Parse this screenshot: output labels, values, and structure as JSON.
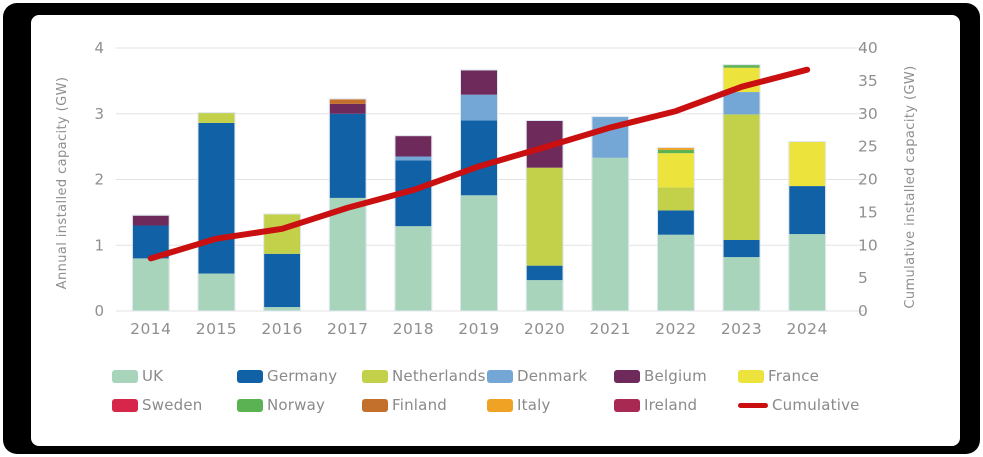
{
  "chart_data": {
    "type": "bar",
    "subtype": "stacked-bars-with-cumulative-line",
    "title": "",
    "categories": [
      "2014",
      "2015",
      "2016",
      "2017",
      "2018",
      "2019",
      "2020",
      "2021",
      "2022",
      "2023",
      "2024"
    ],
    "series": [
      {
        "name": "UK",
        "color": "#a9d4bc",
        "values": [
          0.8,
          0.57,
          0.06,
          1.72,
          1.29,
          1.76,
          0.47,
          2.33,
          1.16,
          0.82,
          1.17
        ]
      },
      {
        "name": "Germany",
        "color": "#1161a6",
        "values": [
          0.5,
          2.29,
          0.81,
          1.28,
          1.0,
          1.14,
          0.22,
          0,
          0.37,
          0.26,
          0.73
        ]
      },
      {
        "name": "Netherlands",
        "color": "#c3d04a",
        "values": [
          0,
          0.15,
          0.6,
          0,
          0,
          0,
          1.49,
          0,
          0.35,
          1.91,
          0
        ]
      },
      {
        "name": "Denmark",
        "color": "#74a7d6",
        "values": [
          0,
          0,
          0,
          0,
          0.06,
          0.39,
          0,
          0.62,
          0,
          0.34,
          0
        ]
      },
      {
        "name": "Belgium",
        "color": "#6d2a5b",
        "values": [
          0.15,
          0,
          0,
          0.15,
          0.31,
          0.37,
          0.71,
          0,
          0,
          0,
          0
        ]
      },
      {
        "name": "France",
        "color": "#ece33c",
        "values": [
          0,
          0,
          0,
          0,
          0,
          0,
          0,
          0,
          0.52,
          0.37,
          0.67
        ]
      },
      {
        "name": "Sweden",
        "color": "#d6264a",
        "values": [
          0,
          0,
          0,
          0,
          0,
          0,
          0,
          0,
          0,
          0,
          0
        ]
      },
      {
        "name": "Norway",
        "color": "#5bb253",
        "values": [
          0,
          0,
          0,
          0,
          0,
          0,
          0,
          0,
          0.05,
          0.04,
          0
        ]
      },
      {
        "name": "Finland",
        "color": "#c2702c",
        "values": [
          0,
          0,
          0,
          0.07,
          0,
          0,
          0,
          0,
          0,
          0,
          0
        ]
      },
      {
        "name": "Italy",
        "color": "#f0a224",
        "values": [
          0,
          0,
          0,
          0,
          0,
          0,
          0,
          0,
          0.03,
          0,
          0
        ]
      },
      {
        "name": "Ireland",
        "color": "#a82a52",
        "values": [
          0,
          0,
          0,
          0,
          0,
          0,
          0,
          0,
          0,
          0,
          0
        ]
      }
    ],
    "line": {
      "name": "Cumulative",
      "color": "#c90f0f",
      "values": [
        8.0,
        11.0,
        12.5,
        15.7,
        18.4,
        22.0,
        24.9,
        27.9,
        30.4,
        34.1,
        36.7
      ]
    },
    "left_axis": {
      "label": "Annual installed capacity (GW)",
      "ticks": [
        0,
        1,
        2,
        3,
        4
      ],
      "range": [
        0,
        4
      ]
    },
    "right_axis": {
      "label": "Cumulative installed capacity (GW)",
      "ticks": [
        0,
        5,
        10,
        15,
        20,
        25,
        30,
        35,
        40
      ],
      "range": [
        0,
        40
      ]
    },
    "grid": true,
    "legend_position": "bottom",
    "legend_order": [
      "UK",
      "Germany",
      "Netherlands",
      "Denmark",
      "Belgium",
      "France",
      "Sweden",
      "Norway",
      "Finland",
      "Italy",
      "Ireland",
      "Cumulative"
    ]
  },
  "style": {
    "axis_text_color": "#8f8f8f",
    "grid_color": "#e3e3e3",
    "bar_outline_color": "#dfe7ee",
    "background": "#ffffff",
    "frame_color": "#000000"
  }
}
